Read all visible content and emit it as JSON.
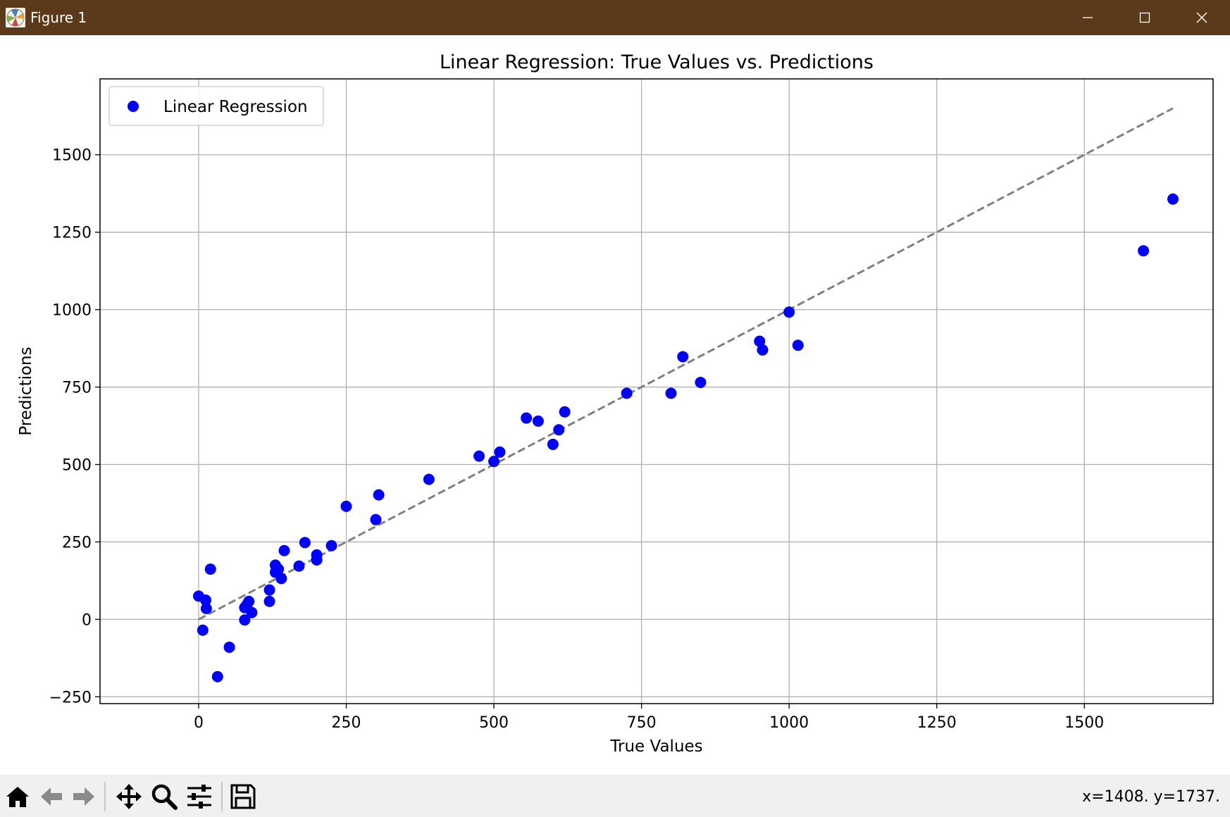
{
  "window": {
    "title": "Figure 1",
    "app_icon": "matplotlib-icon",
    "controls": [
      "minimize-icon",
      "maximize-icon",
      "close-icon"
    ]
  },
  "toolbar": {
    "buttons": [
      "home-icon",
      "back-icon",
      "forward-icon",
      "pan-icon",
      "zoom-icon",
      "configure-subplots-icon",
      "save-icon"
    ],
    "coords_text": "x=1408. y=1737."
  },
  "chart_data": {
    "type": "scatter",
    "title": "Linear Regression: True Values vs. Predictions",
    "xlabel": "True Values",
    "ylabel": "Predictions",
    "xlim": [
      -167,
      1718
    ],
    "ylim": [
      -272,
      1745
    ],
    "xticks": [
      0,
      250,
      500,
      750,
      1000,
      1250,
      1500
    ],
    "yticks": [
      -250,
      0,
      250,
      500,
      750,
      1000,
      1250,
      1500
    ],
    "xtick_labels": [
      "0",
      "250",
      "500",
      "750",
      "1000",
      "1250",
      "1500"
    ],
    "ytick_labels": [
      "−250",
      "0",
      "250",
      "500",
      "750",
      "1000",
      "1250",
      "1500"
    ],
    "grid": true,
    "legend_position": "top-left",
    "series": [
      {
        "name": "Linear Regression",
        "color": "#0000ff",
        "points": [
          [
            0,
            75
          ],
          [
            7,
            -35
          ],
          [
            12,
            62
          ],
          [
            13,
            35
          ],
          [
            20,
            162
          ],
          [
            32,
            -185
          ],
          [
            52,
            -90
          ],
          [
            78,
            -2
          ],
          [
            78,
            38
          ],
          [
            82,
            48
          ],
          [
            85,
            58
          ],
          [
            90,
            22
          ],
          [
            120,
            95
          ],
          [
            120,
            58
          ],
          [
            130,
            175
          ],
          [
            130,
            152
          ],
          [
            135,
            162
          ],
          [
            140,
            132
          ],
          [
            145,
            222
          ],
          [
            170,
            172
          ],
          [
            180,
            248
          ],
          [
            200,
            192
          ],
          [
            200,
            208
          ],
          [
            225,
            238
          ],
          [
            250,
            365
          ],
          [
            300,
            322
          ],
          [
            305,
            402
          ],
          [
            390,
            452
          ],
          [
            475,
            527
          ],
          [
            500,
            510
          ],
          [
            510,
            540
          ],
          [
            555,
            650
          ],
          [
            575,
            640
          ],
          [
            600,
            565
          ],
          [
            610,
            612
          ],
          [
            620,
            670
          ],
          [
            725,
            730
          ],
          [
            800,
            730
          ],
          [
            820,
            848
          ],
          [
            850,
            765
          ],
          [
            950,
            898
          ],
          [
            955,
            870
          ],
          [
            1000,
            992
          ],
          [
            1015,
            885
          ],
          [
            1600,
            1190
          ],
          [
            1650,
            1357
          ]
        ]
      }
    ],
    "reference_line": {
      "style": "dashed",
      "color": "#808080",
      "from": [
        0,
        0
      ],
      "to": [
        1650,
        1650
      ]
    }
  }
}
